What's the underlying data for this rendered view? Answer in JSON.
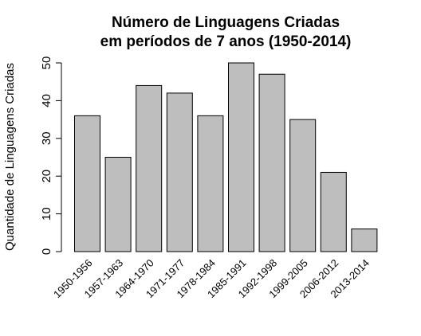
{
  "chart_data": {
    "type": "bar",
    "title_line1": "Número de Linguagens Criadas",
    "title_line2": "em períodos de 7 anos (1950-2014)",
    "xlabel": "",
    "ylabel": "Quantidade de Linguagens Criadas",
    "ylim": [
      0,
      50
    ],
    "yticks": [
      0,
      10,
      20,
      30,
      40,
      50
    ],
    "grid": false,
    "bar_color": "#bebebe",
    "bar_border_color": "#000000",
    "categories": [
      "1950-1956",
      "1957-1963",
      "1964-1970",
      "1971-1977",
      "1978-1984",
      "1985-1991",
      "1992-1998",
      "1999-2005",
      "2006-2012",
      "2013-2014"
    ],
    "values": [
      36,
      25,
      44,
      42,
      36,
      50,
      47,
      35,
      21,
      6
    ]
  }
}
